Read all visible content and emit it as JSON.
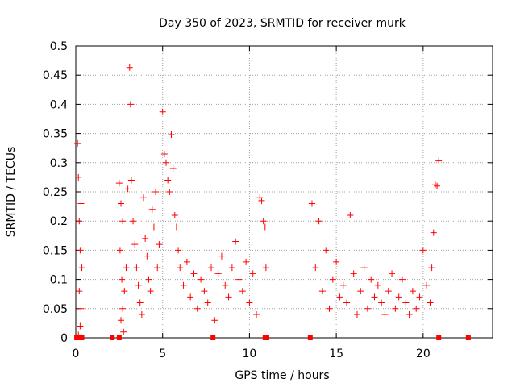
{
  "chart_data": {
    "type": "scatter",
    "title": "Day 350 of 2023, SRMTID for receiver murk",
    "xlabel": "GPS time / hours",
    "ylabel": "SRMTID / TECUs",
    "xlim": [
      0,
      24
    ],
    "ylim": [
      0,
      0.5
    ],
    "x_ticks": [
      0,
      5,
      10,
      15,
      20
    ],
    "y_ticks": [
      0,
      0.05,
      0.1,
      0.15,
      0.2,
      0.25,
      0.3,
      0.35,
      0.4,
      0.45,
      0.5
    ],
    "grid": true,
    "marker": "+",
    "color": "#ff0000",
    "series": [
      {
        "points": [
          [
            0.1,
            0.333
          ],
          [
            0.15,
            0.275
          ],
          [
            0.2,
            0.2
          ],
          [
            0.25,
            0.15
          ],
          [
            0.3,
            0.23
          ],
          [
            0.35,
            0.12
          ],
          [
            0.2,
            0.08
          ],
          [
            0.3,
            0.05
          ],
          [
            0.25,
            0.02
          ],
          [
            0.15,
            0.005
          ],
          [
            2.5,
            0.265
          ],
          [
            2.6,
            0.23
          ],
          [
            2.7,
            0.2
          ],
          [
            2.55,
            0.15
          ],
          [
            2.65,
            0.1
          ],
          [
            2.8,
            0.08
          ],
          [
            2.7,
            0.05
          ],
          [
            2.6,
            0.03
          ],
          [
            2.9,
            0.12
          ],
          [
            2.75,
            0.01
          ],
          [
            3.0,
            0.255
          ],
          [
            3.1,
            0.463
          ],
          [
            3.15,
            0.4
          ],
          [
            3.2,
            0.27
          ],
          [
            3.3,
            0.2
          ],
          [
            3.4,
            0.16
          ],
          [
            3.5,
            0.12
          ],
          [
            3.6,
            0.09
          ],
          [
            3.7,
            0.06
          ],
          [
            3.8,
            0.04
          ],
          [
            3.9,
            0.24
          ],
          [
            4.0,
            0.17
          ],
          [
            4.1,
            0.14
          ],
          [
            4.2,
            0.1
          ],
          [
            4.3,
            0.08
          ],
          [
            4.4,
            0.22
          ],
          [
            4.5,
            0.19
          ],
          [
            4.6,
            0.25
          ],
          [
            4.7,
            0.12
          ],
          [
            4.8,
            0.16
          ],
          [
            5.0,
            0.387
          ],
          [
            5.1,
            0.315
          ],
          [
            5.2,
            0.3
          ],
          [
            5.3,
            0.27
          ],
          [
            5.4,
            0.25
          ],
          [
            5.5,
            0.348
          ],
          [
            5.6,
            0.29
          ],
          [
            5.7,
            0.21
          ],
          [
            5.8,
            0.19
          ],
          [
            5.9,
            0.15
          ],
          [
            6.0,
            0.12
          ],
          [
            6.2,
            0.09
          ],
          [
            6.4,
            0.13
          ],
          [
            6.6,
            0.07
          ],
          [
            6.8,
            0.11
          ],
          [
            7.0,
            0.05
          ],
          [
            7.2,
            0.1
          ],
          [
            7.4,
            0.08
          ],
          [
            7.6,
            0.06
          ],
          [
            7.8,
            0.12
          ],
          [
            8.0,
            0.03
          ],
          [
            8.2,
            0.11
          ],
          [
            8.4,
            0.14
          ],
          [
            8.6,
            0.09
          ],
          [
            8.8,
            0.07
          ],
          [
            9.0,
            0.12
          ],
          [
            9.2,
            0.165
          ],
          [
            9.4,
            0.1
          ],
          [
            9.6,
            0.08
          ],
          [
            9.8,
            0.13
          ],
          [
            10.0,
            0.06
          ],
          [
            10.2,
            0.11
          ],
          [
            10.4,
            0.04
          ],
          [
            10.6,
            0.24
          ],
          [
            10.7,
            0.235
          ],
          [
            10.8,
            0.2
          ],
          [
            10.9,
            0.19
          ],
          [
            10.95,
            0.12
          ],
          [
            13.6,
            0.23
          ],
          [
            13.8,
            0.12
          ],
          [
            14.0,
            0.2
          ],
          [
            14.2,
            0.08
          ],
          [
            14.4,
            0.15
          ],
          [
            14.6,
            0.05
          ],
          [
            14.8,
            0.1
          ],
          [
            15.0,
            0.13
          ],
          [
            15.2,
            0.07
          ],
          [
            15.4,
            0.09
          ],
          [
            15.6,
            0.06
          ],
          [
            15.8,
            0.21
          ],
          [
            16.0,
            0.11
          ],
          [
            16.2,
            0.04
          ],
          [
            16.4,
            0.08
          ],
          [
            16.6,
            0.12
          ],
          [
            16.8,
            0.05
          ],
          [
            17.0,
            0.1
          ],
          [
            17.2,
            0.07
          ],
          [
            17.4,
            0.09
          ],
          [
            17.6,
            0.06
          ],
          [
            17.8,
            0.04
          ],
          [
            18.0,
            0.08
          ],
          [
            18.2,
            0.11
          ],
          [
            18.4,
            0.05
          ],
          [
            18.6,
            0.07
          ],
          [
            18.8,
            0.1
          ],
          [
            19.0,
            0.06
          ],
          [
            19.2,
            0.04
          ],
          [
            19.4,
            0.08
          ],
          [
            19.6,
            0.05
          ],
          [
            19.8,
            0.07
          ],
          [
            20.0,
            0.15
          ],
          [
            20.2,
            0.09
          ],
          [
            20.4,
            0.06
          ],
          [
            20.5,
            0.12
          ],
          [
            20.6,
            0.18
          ],
          [
            20.7,
            0.262
          ],
          [
            20.8,
            0.26
          ],
          [
            20.9,
            0.303
          ]
        ],
        "zero_points": [
          0.05,
          0.15,
          0.35,
          2.1,
          2.5,
          7.9,
          10.9,
          11.0,
          13.5,
          20.9,
          22.6
        ]
      }
    ]
  }
}
